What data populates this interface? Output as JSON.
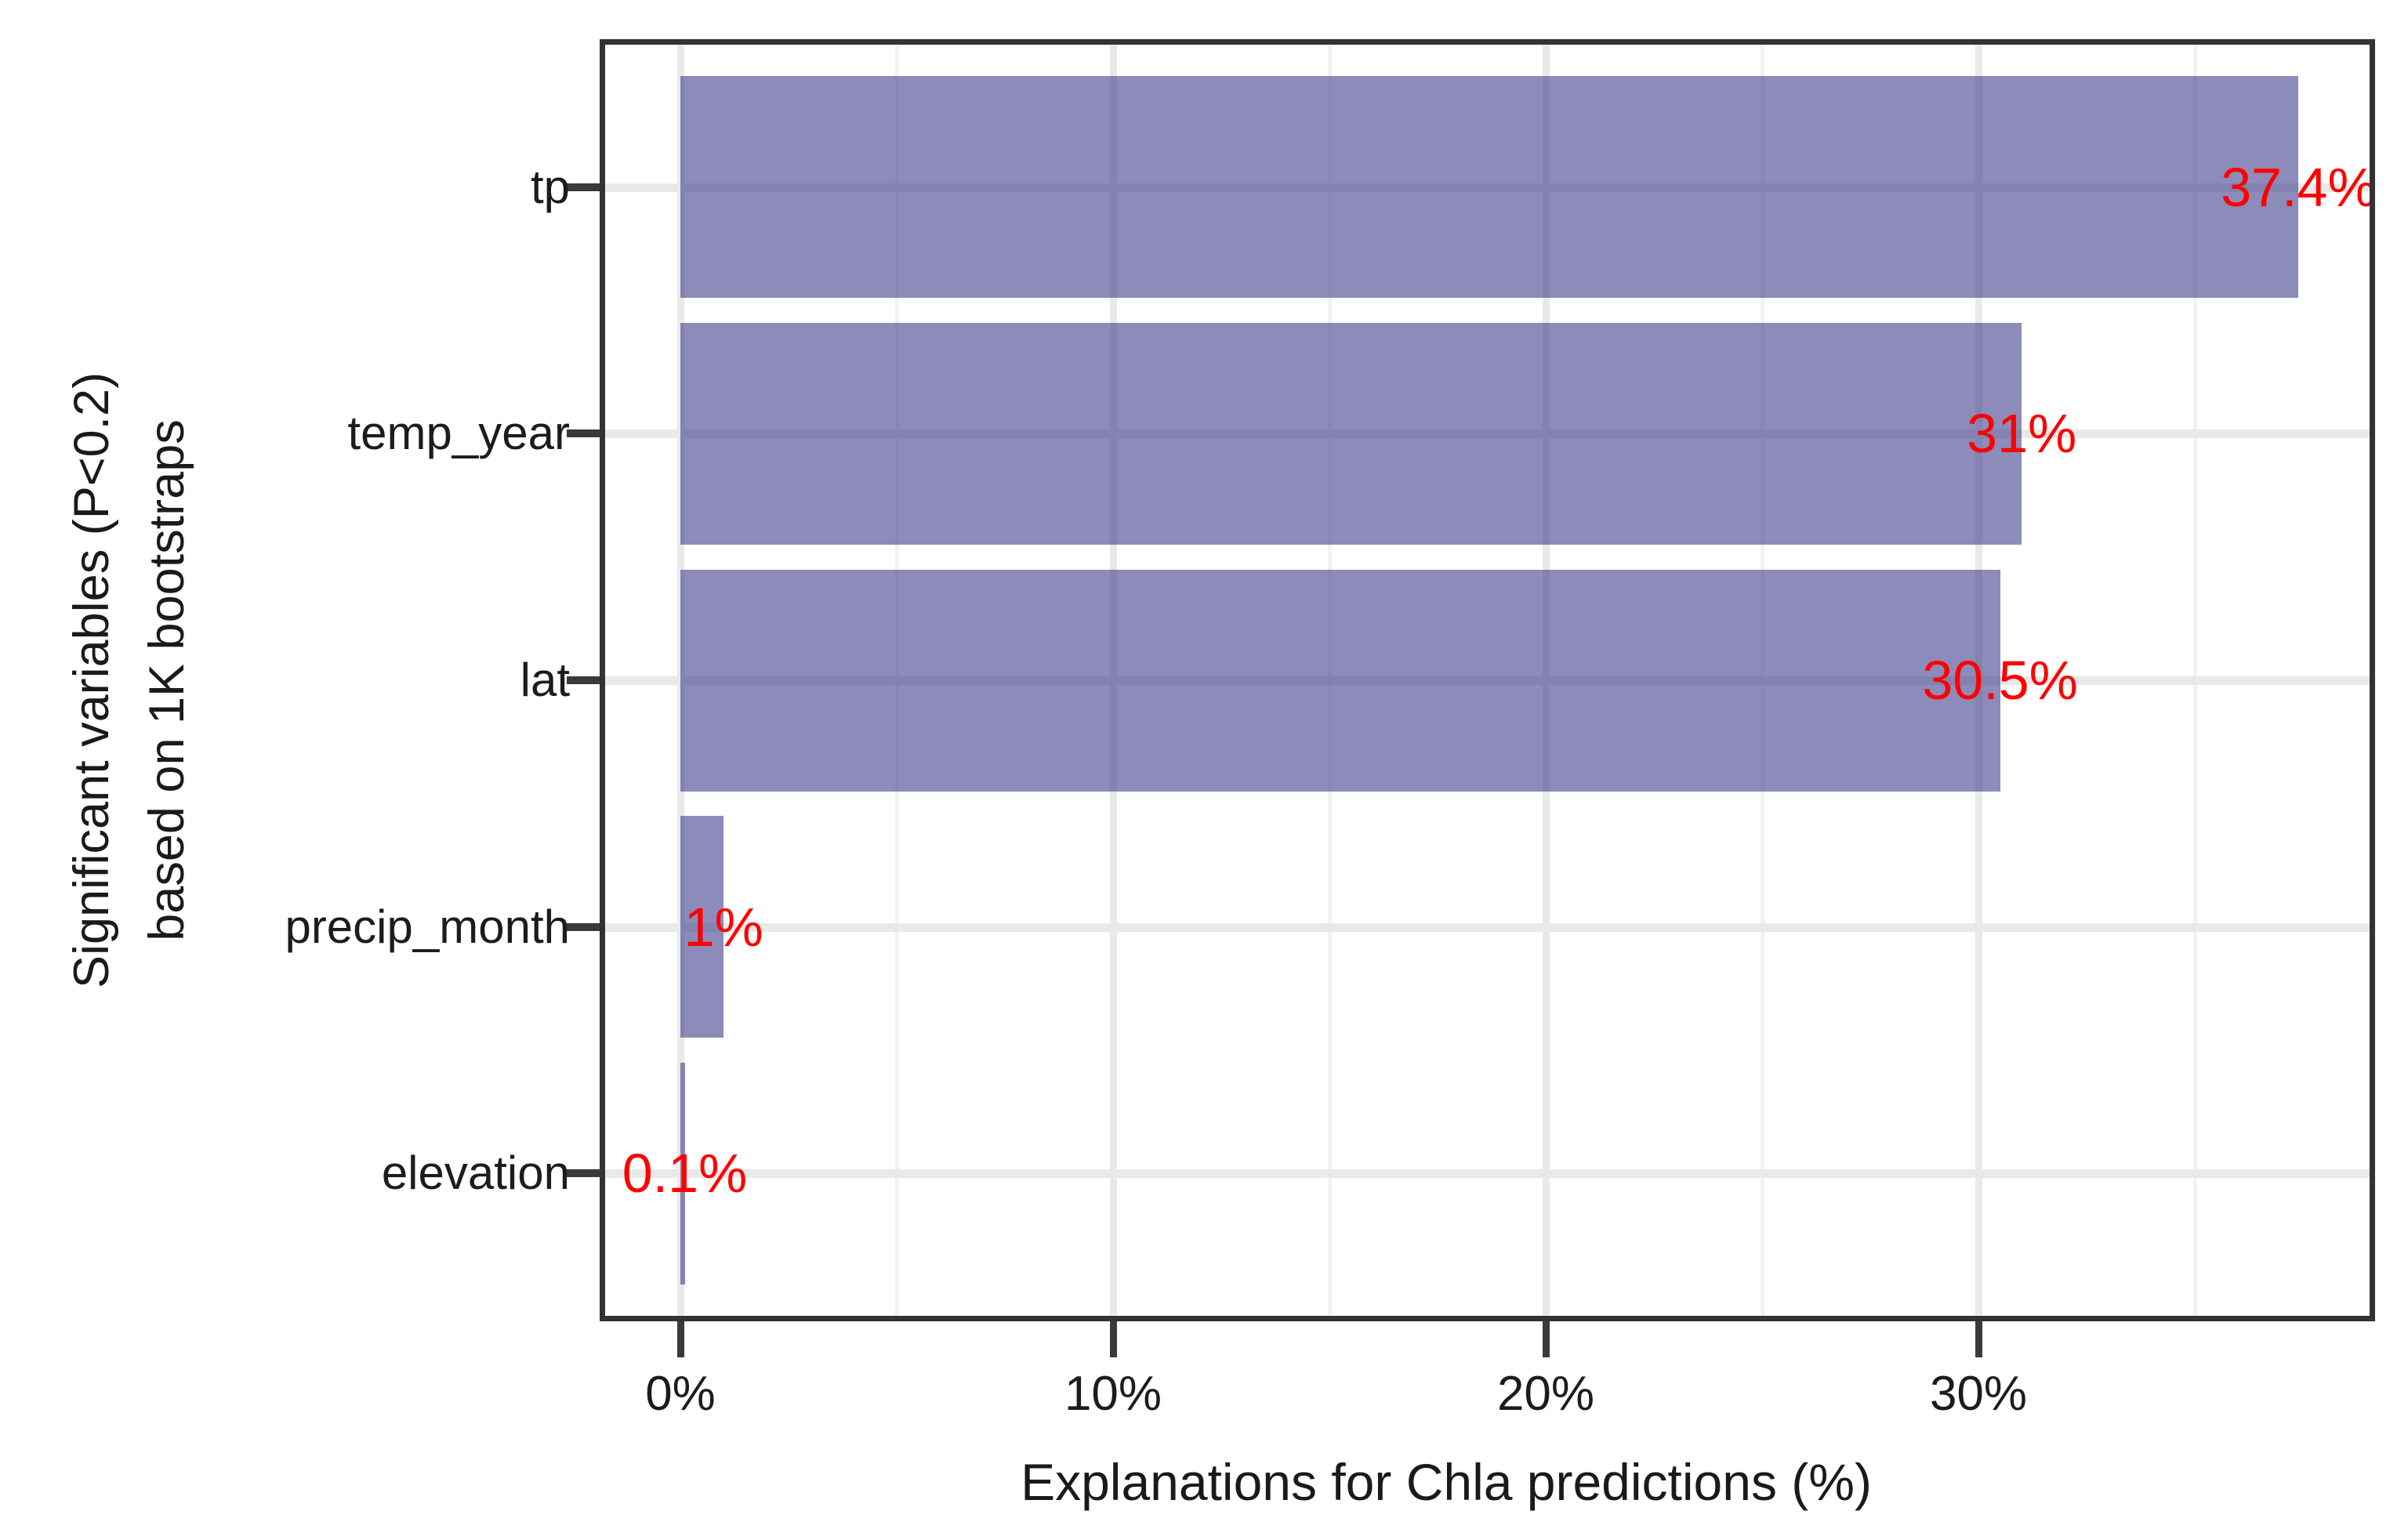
{
  "chart_data": {
    "type": "bar",
    "orientation": "horizontal",
    "title": "",
    "xlabel": "Explanations for Chla predictions (%)",
    "ylabel": "Significant variables (P<0.2) based on 1K bootstraps",
    "ylabel_lines": [
      "Significant variables (P<0.2)",
      "based on 1K bootstraps"
    ],
    "categories": [
      "tp",
      "temp_year",
      "lat",
      "precip_month",
      "elevation"
    ],
    "values": [
      37.4,
      31,
      30.5,
      1,
      0.1
    ],
    "bar_labels": [
      "37.4%",
      "31%",
      "30.5%",
      "1%",
      "0.1%"
    ],
    "x_ticks": [
      0,
      10,
      20,
      30
    ],
    "x_tick_labels": [
      "0%",
      "10%",
      "20%",
      "30%"
    ],
    "x_minor_gridlines": [
      5,
      15,
      25,
      35
    ],
    "xlim": [
      0,
      39.2
    ],
    "grid": true,
    "legend": false,
    "colors": {
      "bar_fill": "#413e8a",
      "bar_fill_opacity": 0.6,
      "value_label": "#ff0000",
      "axis_text": "#1c1c1c",
      "panel_border": "#333333",
      "grid_major": "#e9e9e9",
      "grid_minor": "#f2f2f2",
      "background": "#ffffff"
    }
  }
}
